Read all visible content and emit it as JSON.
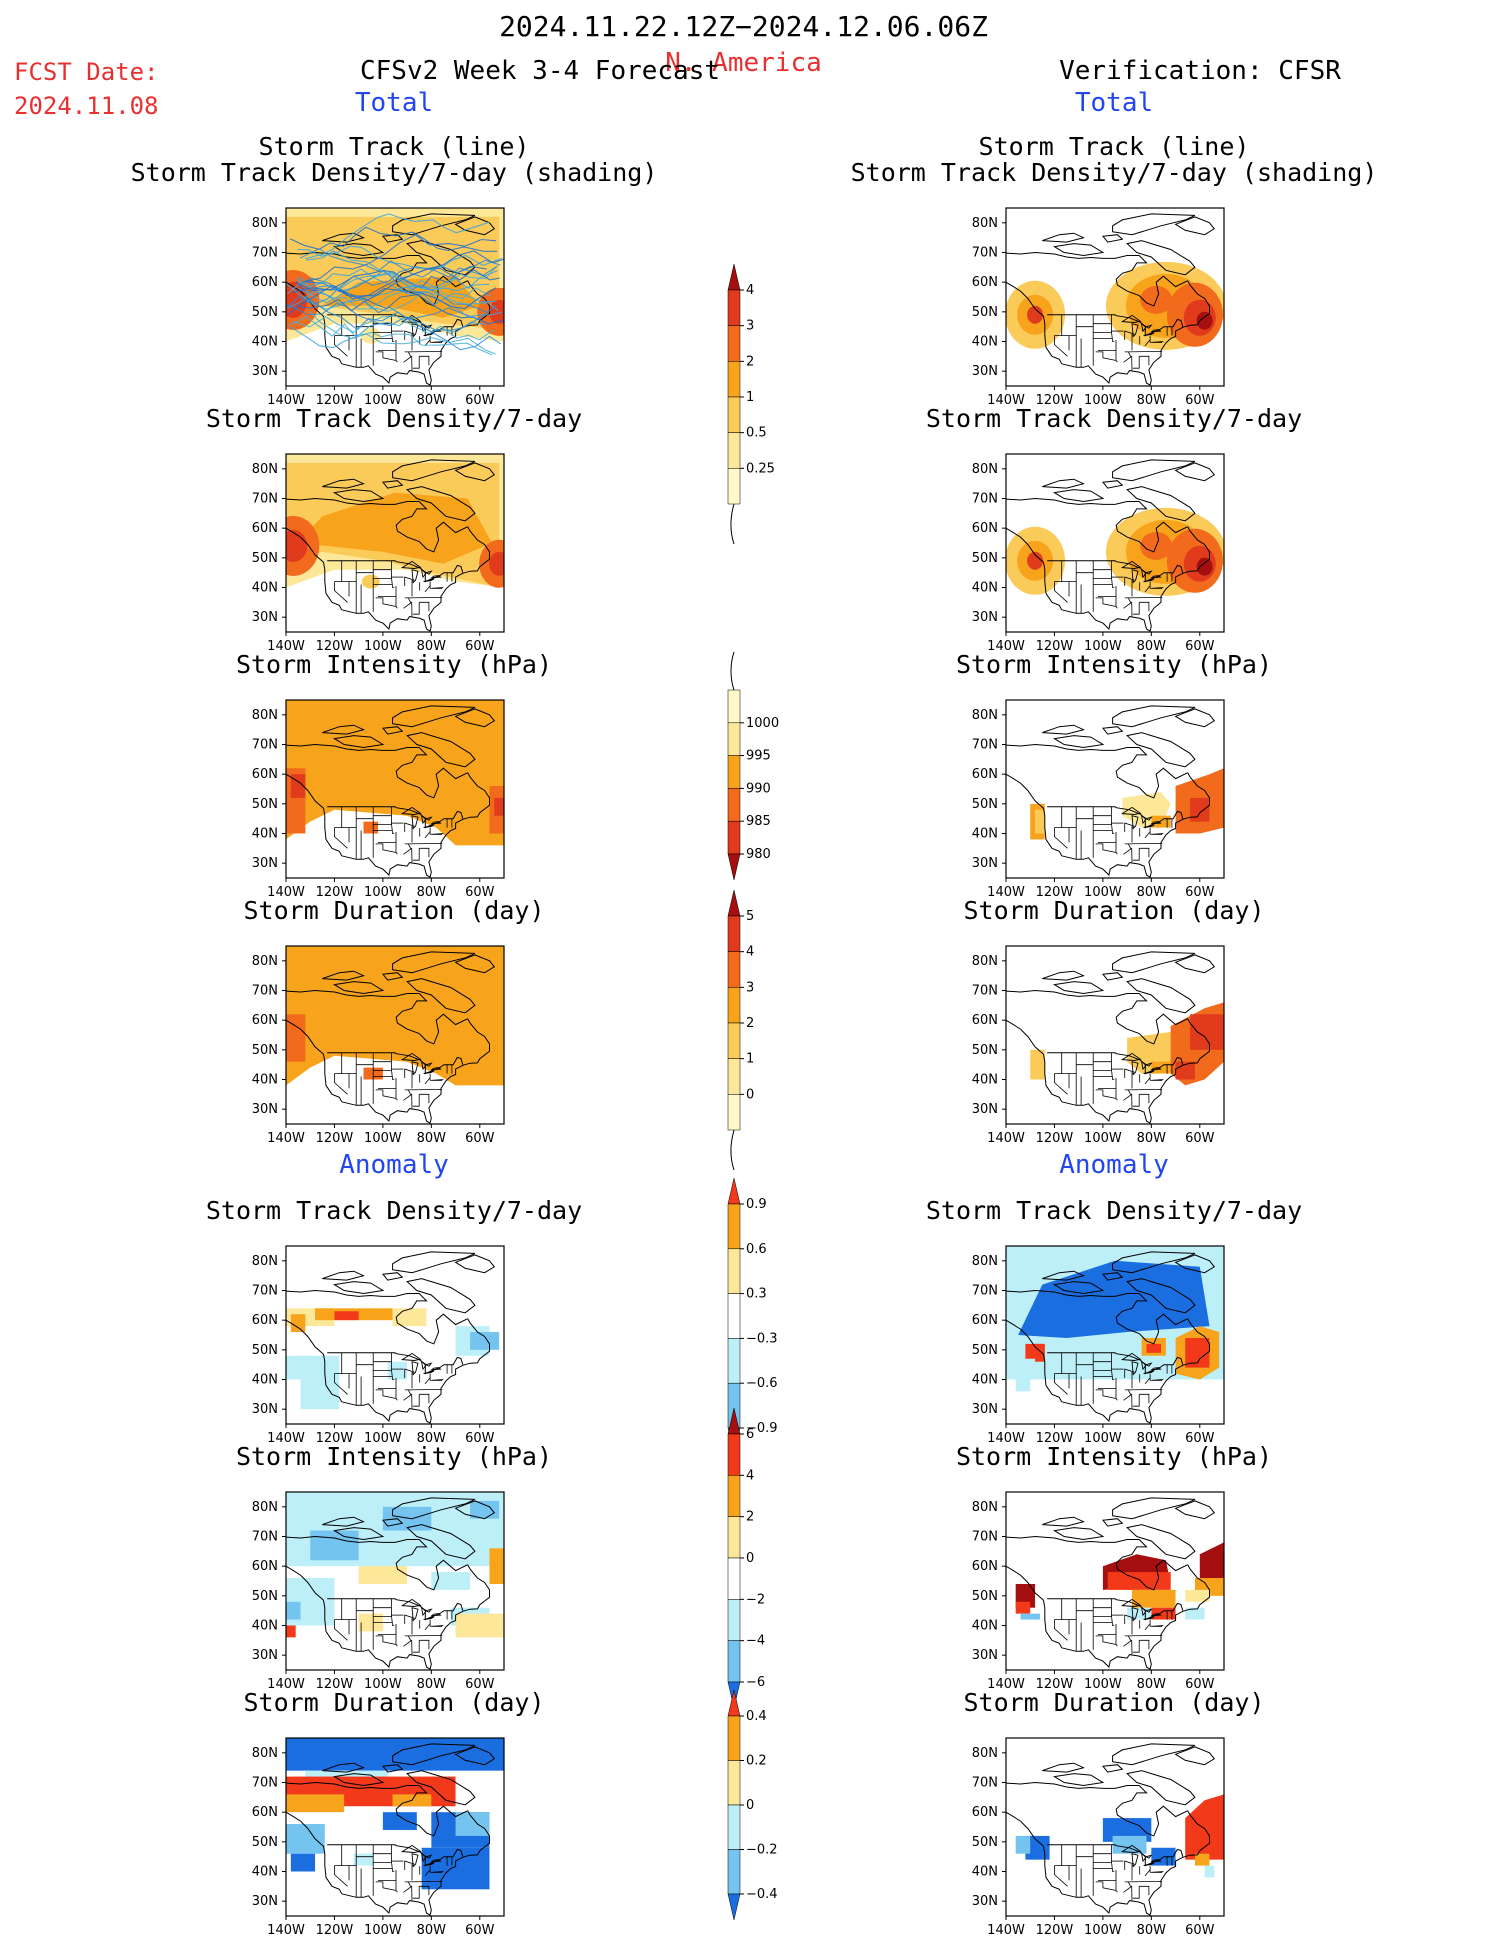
{
  "header": {
    "date_range": "2024.11.22.12Z−2024.12.06.06Z",
    "region": "N. America",
    "fcst_label": "FCST Date:",
    "fcst_date": "2024.11.08",
    "left_title": "CFSv2 Week 3-4 Forecast",
    "right_title": "Verification: CFSR",
    "total_label": "Total",
    "anomaly_label": "Anomaly"
  },
  "panel_titles": {
    "track_line": "Storm Track (line)",
    "track_shading": "Storm Track Density/7-day (shading)",
    "density": "Storm Track Density/7-day",
    "intensity": "Storm Intensity (hPa)",
    "duration": "Storm Duration (day)"
  },
  "map_axes": {
    "lat_labels": [
      "80N",
      "70N",
      "60N",
      "50N",
      "40N",
      "30N"
    ],
    "lon_labels": [
      "140W",
      "120W",
      "100W",
      "80W",
      "60W"
    ],
    "lat_range": [
      25,
      85
    ],
    "lon_range": [
      -140,
      -50
    ]
  },
  "colorbars": [
    {
      "name": "density-total",
      "labels": [
        "4",
        "3",
        "2",
        "1",
        "0.5",
        "0.25"
      ],
      "colors": [
        "#a50f0f",
        "#e03b1c",
        "#f26a1c",
        "#f7a41c",
        "#fbcb5a",
        "#fde89a",
        "#fff8c8"
      ]
    },
    {
      "name": "intensity-total",
      "labels": [
        "1000",
        "995",
        "990",
        "985",
        "980"
      ],
      "colors": [
        "#fff8c8",
        "#fde89a",
        "#f7a41c",
        "#f26a1c",
        "#e03b1c",
        "#a50f0f"
      ]
    },
    {
      "name": "duration-total",
      "labels": [
        "5",
        "4",
        "3",
        "2",
        "1",
        "0"
      ],
      "colors": [
        "#a50f0f",
        "#e03b1c",
        "#f26a1c",
        "#f7a41c",
        "#fbcb5a",
        "#fde89a",
        "#fff8c8"
      ]
    },
    {
      "name": "density-anomaly",
      "labels": [
        "0.9",
        "0.6",
        "0.3",
        "−0.3",
        "−0.6",
        "−0.9"
      ],
      "colors": [
        "#f23a1a",
        "#f7a41c",
        "#fde89a",
        "#ffffff",
        "#bdeff8",
        "#75c4f0",
        "#1a6ee0"
      ]
    },
    {
      "name": "intensity-anomaly",
      "labels": [
        "6",
        "4",
        "2",
        "0",
        "−2",
        "−4",
        "−6"
      ],
      "colors": [
        "#a50f0f",
        "#f23a1a",
        "#f7a41c",
        "#fde89a",
        "#ffffff",
        "#bdeff8",
        "#75c4f0",
        "#1a6ee0"
      ]
    },
    {
      "name": "duration-anomaly",
      "labels": [
        "0.4",
        "0.2",
        "0",
        "−0.2",
        "−0.4"
      ],
      "colors": [
        "#f23a1a",
        "#f7a41c",
        "#fde89a",
        "#bdeff8",
        "#75c4f0",
        "#1a6ee0"
      ]
    }
  ],
  "colors": {
    "accent_blue": "#2246f0",
    "accent_red": "#e83030"
  },
  "chart_data": [
    {
      "type": "heatmap",
      "column": "forecast",
      "section": "Total",
      "title": "Storm Track (line) / Storm Track Density/7-day (shading)",
      "blobs": [
        {
          "lon": -135,
          "lat": 55,
          "level": 3
        },
        {
          "lon": -90,
          "lat": 65,
          "level": 1
        },
        {
          "lon": -55,
          "lat": 48,
          "level": 3
        }
      ],
      "base_level": 1,
      "storm_tracks": true
    },
    {
      "type": "heatmap",
      "column": "verification",
      "section": "Total",
      "title": "Storm Track (line) / Storm Track Density/7-day (shading)",
      "blobs": [
        {
          "lon": -128,
          "lat": 48,
          "level": 2
        },
        {
          "lon": -78,
          "lat": 52,
          "level": 2
        },
        {
          "lon": -60,
          "lat": 48,
          "level": 3
        }
      ],
      "storm_tracks": false
    },
    {
      "type": "heatmap",
      "column": "forecast",
      "section": "Total",
      "title": "Storm Track Density/7-day",
      "blobs": [
        {
          "lon": -135,
          "lat": 55,
          "level": 3
        },
        {
          "lon": -55,
          "lat": 48,
          "level": 3
        }
      ],
      "base_level": 1
    },
    {
      "type": "heatmap",
      "column": "verification",
      "section": "Total",
      "title": "Storm Track Density/7-day",
      "blobs": [
        {
          "lon": -128,
          "lat": 48,
          "level": 2
        },
        {
          "lon": -78,
          "lat": 52,
          "level": 2
        },
        {
          "lon": -60,
          "lat": 48,
          "level": 3
        }
      ]
    },
    {
      "type": "heatmap",
      "column": "forecast",
      "section": "Total",
      "title": "Storm Intensity (hPa)",
      "description": "Mostly 990-995 hPa over Canada/Arctic; 985 hPa off west coast and NE Atlantic."
    },
    {
      "type": "heatmap",
      "column": "verification",
      "section": "Total",
      "title": "Storm Intensity (hPa)",
      "description": "995 hPa western coast and Great Lakes; 985-990 hPa Atlantic Canada."
    },
    {
      "type": "heatmap",
      "column": "forecast",
      "section": "Total",
      "title": "Storm Duration (day)",
      "description": "2-3 days across Canada; 4 days off west coast."
    },
    {
      "type": "heatmap",
      "column": "verification",
      "section": "Total",
      "title": "Storm Duration (day)",
      "description": "1 day western coast; 2-4 days eastern Canada and Atlantic."
    },
    {
      "type": "heatmap",
      "column": "forecast",
      "section": "Anomaly",
      "title": "Storm Track Density/7-day",
      "description": "Positive (0.3-0.9) band near 60N; negative (-0.3 to -0.6) Pacific and Labrador."
    },
    {
      "type": "heatmap",
      "column": "verification",
      "section": "Anomaly",
      "title": "Storm Track Density/7-day",
      "description": "Strong negative (-0.9) over Canada and Arctic; positive (0.6-0.9) near 50N Pacific, Great Lakes, Atlantic."
    },
    {
      "type": "heatmap",
      "column": "forecast",
      "section": "Anomaly",
      "title": "Storm Intensity (hPa)",
      "description": "Weak negative (-2) over Arctic/north; weak positive (2) near 60N and Atlantic."
    },
    {
      "type": "heatmap",
      "column": "verification",
      "section": "Anomaly",
      "title": "Storm Intensity (hPa)",
      "description": "Strong positive (4-6) west coast, Hudson Bay region, Atlantic Canada; weak negative near east coast."
    },
    {
      "type": "heatmap",
      "column": "forecast",
      "section": "Anomaly",
      "title": "Storm Duration (day)",
      "description": "Negative (-0.4) over Arctic and eastern US; positive (0.4) band 60-70N."
    },
    {
      "type": "heatmap",
      "column": "verification",
      "section": "Anomaly",
      "title": "Storm Duration (day)",
      "description": "Negative (-0.4) west and Great Lakes; positive (0.4) Atlantic Canada."
    }
  ]
}
